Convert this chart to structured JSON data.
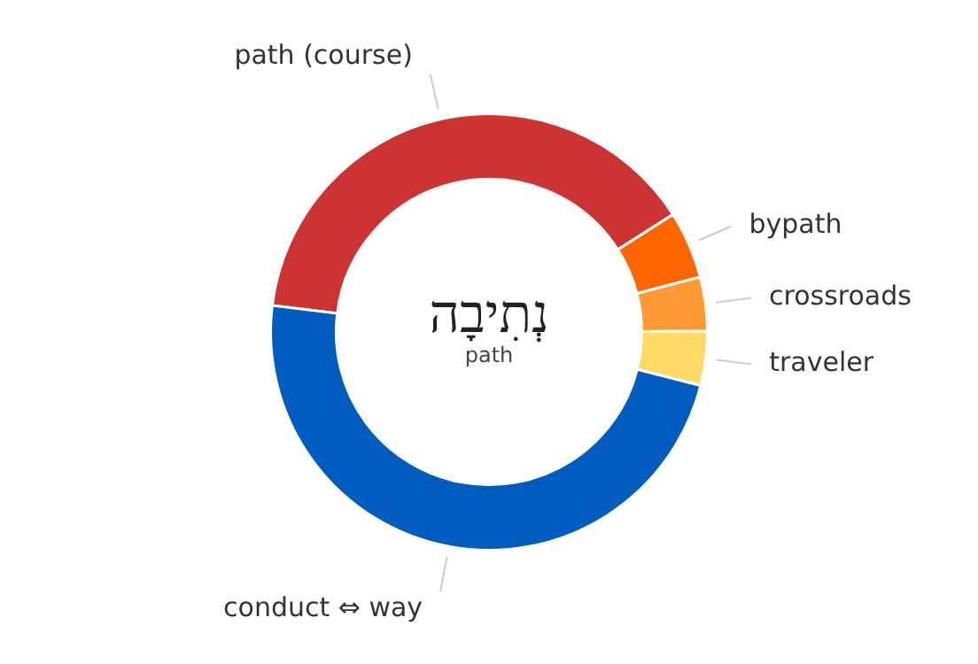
{
  "chart_data": {
    "type": "donut",
    "title": "נְתִיבָה",
    "subtitle": "path",
    "categories": [
      "path (course)",
      "bypath",
      "crossroads",
      "traveler",
      "conduct ⇔ way"
    ],
    "values": [
      39,
      5,
      4,
      4,
      48
    ],
    "colors": [
      "#cc3333",
      "#ff6600",
      "#ff9933",
      "#ffd966",
      "#005cbf"
    ],
    "legend": false
  }
}
